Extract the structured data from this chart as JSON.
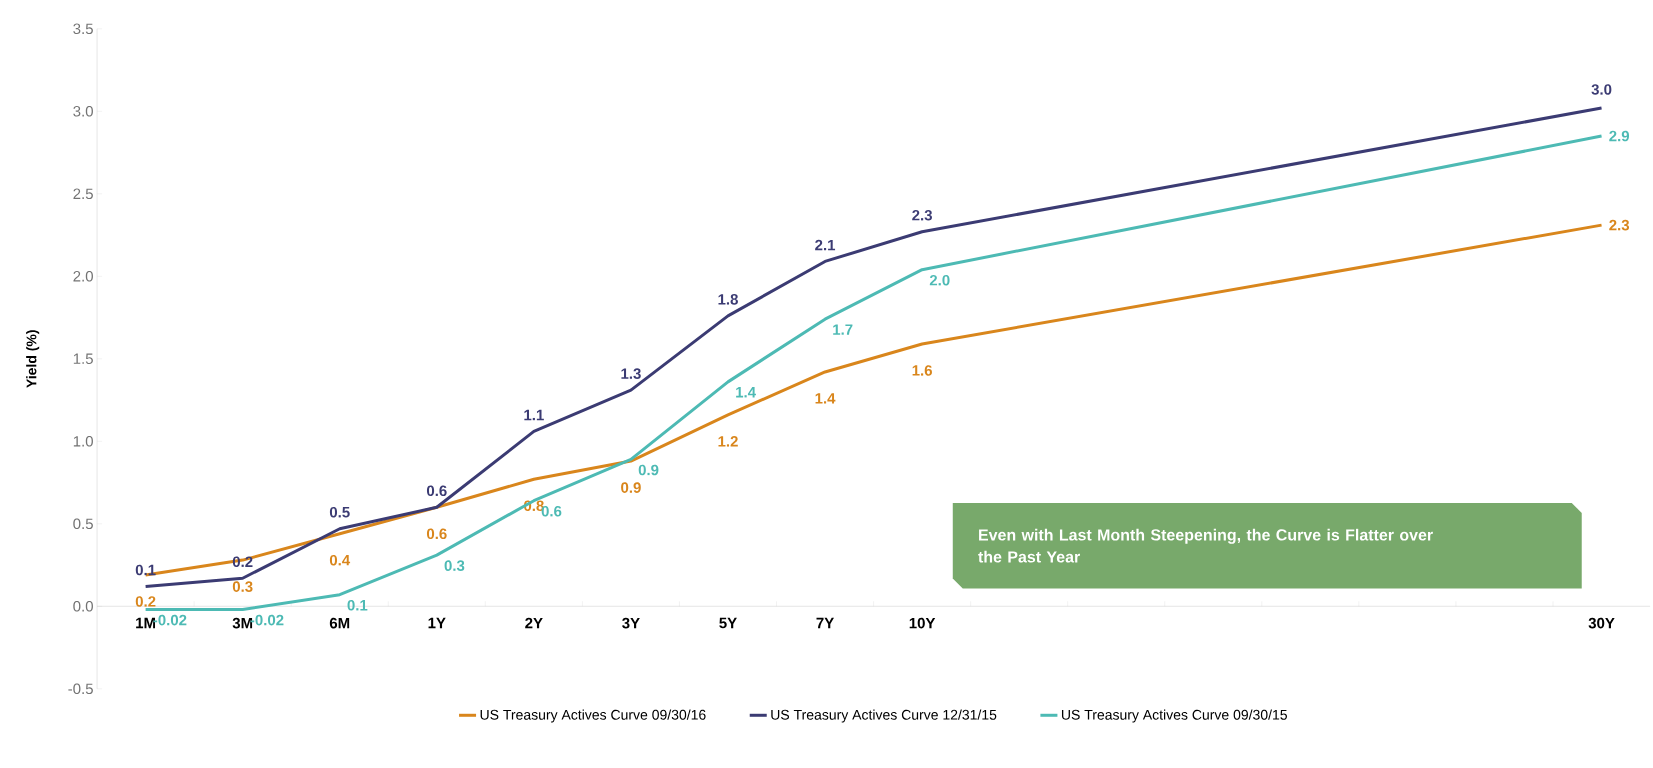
{
  "chart_data": {
    "type": "line",
    "ylabel": "Yield (%)",
    "categories": [
      "1M",
      "3M",
      "6M",
      "1Y",
      "2Y",
      "3Y",
      "5Y",
      "7Y",
      "10Y",
      null,
      null,
      null,
      null,
      null,
      null,
      "30Y"
    ],
    "ylim": [
      -0.5,
      3.5
    ],
    "yticks": [
      {
        "value": -0.5,
        "label": "-0.5"
      },
      {
        "value": 0,
        "label": "0.0"
      },
      {
        "value": 0.5,
        "label": "0.5"
      },
      {
        "value": 1,
        "label": "1.0"
      },
      {
        "value": 1.5,
        "label": "1.5"
      },
      {
        "value": 2,
        "label": "2.0"
      },
      {
        "value": 2.5,
        "label": "2.5"
      },
      {
        "value": 3,
        "label": "3.0"
      },
      {
        "value": 3.5,
        "label": "3.5"
      }
    ],
    "legend": "bottom",
    "grid": false,
    "marker": "none",
    "line_style": "solid",
    "annotations": [
      "Even with Last Month Steepening, the Curve is Flatter over the Past Year"
    ],
    "series": [
      {
        "name": "US Treasury Actives Curve 09/30/16",
        "color": "#d9861c",
        "values": [
          0.19,
          0.28,
          0.44,
          0.6,
          0.77,
          0.88,
          1.16,
          1.42,
          1.59,
          null,
          null,
          null,
          null,
          null,
          null,
          2.31
        ],
        "value_labels": [
          "0.2",
          "0.3",
          "0.4",
          "0.6",
          "0.8",
          "0.9",
          "1.2",
          "1.4",
          "1.6",
          null,
          null,
          null,
          null,
          null,
          null,
          "2.3"
        ]
      },
      {
        "name": "US Treasury Actives Curve 12/31/15",
        "color": "#3b3b73",
        "values": [
          0.12,
          0.17,
          0.47,
          0.6,
          1.06,
          1.31,
          1.76,
          2.09,
          2.27,
          null,
          null,
          null,
          null,
          null,
          null,
          3.02
        ],
        "value_labels": [
          "0.1",
          "0.2",
          "0.5",
          "0.6",
          "1.1",
          "1.3",
          "1.8",
          "2.1",
          "2.3",
          null,
          null,
          null,
          null,
          null,
          null,
          "3.0"
        ]
      },
      {
        "name": "US Treasury Actives Curve 09/30/15",
        "color": "#4dbab4",
        "values": [
          -0.02,
          -0.02,
          0.07,
          0.31,
          0.64,
          0.89,
          1.36,
          1.74,
          2.04,
          null,
          null,
          null,
          null,
          null,
          null,
          2.85
        ],
        "value_labels": [
          "-0.02",
          "-0.02",
          "0.1",
          "0.3",
          "0.6",
          "0.9",
          "1.4",
          "1.7",
          "2.0",
          null,
          null,
          null,
          null,
          null,
          null,
          "2.9"
        ]
      }
    ]
  }
}
